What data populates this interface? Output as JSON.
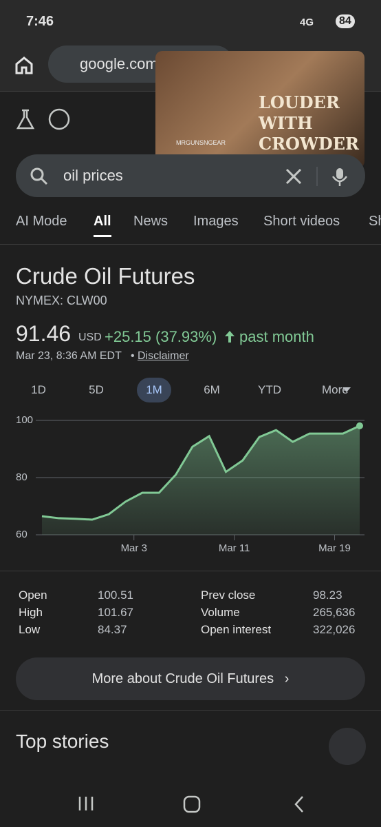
{
  "status_bar": {
    "time": "7:46",
    "network": "4G",
    "battery": "84"
  },
  "browser": {
    "url": "google.com"
  },
  "pip_video": {
    "title": "LOUDER WITH CROWDER",
    "watermark": "MRGUNSNGEAR"
  },
  "search": {
    "query": "oil prices"
  },
  "tabs": [
    "AI Mode",
    "All",
    "News",
    "Images",
    "Short videos",
    "Sh"
  ],
  "quote": {
    "title": "Crude Oil Futures",
    "symbol": "NYMEX: CLW00",
    "price": "91.46",
    "currency": "USD",
    "change": "+25.15 (37.93%)",
    "period": "past month",
    "timestamp": "Mar 23, 8:36 AM EDT",
    "disclaimer": "Disclaimer"
  },
  "ranges": [
    "1D",
    "5D",
    "1M",
    "6M",
    "YTD",
    "More"
  ],
  "chart_data": {
    "type": "area",
    "color": "#81c995",
    "x": [
      0,
      1,
      2,
      3,
      4,
      5,
      6,
      7,
      8,
      9,
      10,
      11,
      12,
      13,
      14,
      15,
      16,
      17,
      18,
      19
    ],
    "values": [
      66.5,
      65.8,
      65.6,
      65.3,
      67.2,
      71.6,
      74.7,
      74.7,
      81,
      90.8,
      94.5,
      82,
      86,
      94.2,
      96.6,
      92.5,
      95.4,
      95.4,
      95.4,
      98.1
    ],
    "xlim": [
      0,
      19
    ],
    "xticks": [
      {
        "value": 5.5,
        "label": "Mar 3"
      },
      {
        "value": 11.5,
        "label": "Mar 11"
      },
      {
        "value": 17.5,
        "label": "Mar 19"
      }
    ],
    "ylim": [
      60,
      100
    ],
    "yticks": [
      60,
      80,
      100
    ],
    "grid": true
  },
  "stats": {
    "rows": [
      [
        "Open",
        "100.51",
        "Prev close",
        "98.23"
      ],
      [
        "High",
        "101.67",
        "Volume",
        "265,636"
      ],
      [
        "Low",
        "84.37",
        "Open interest",
        "322,026"
      ]
    ]
  },
  "more_button": "More about Crude Oil Futures",
  "top_stories": "Top stories"
}
